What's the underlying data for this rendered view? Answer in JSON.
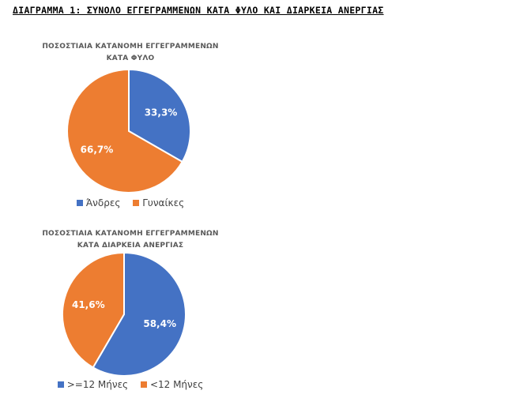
{
  "page": {
    "title": "ΔΙΑΓΡΑΜΜΑ 1: ΣΥΝΟΛΟ ΕΓΓΕΓΡΑΜΜΕΝΩΝ ΚΑΤΑ ΦΥΛΟ ΚΑΙ ΔΙΑΡΚΕΙΑ ΑΝΕΡΓΙΑΣ"
  },
  "colors": {
    "blue": "#4472C4",
    "orange": "#ED7D31"
  },
  "chart_data": [
    {
      "type": "pie",
      "title_lines": [
        "ΠΟΣΟΣΤΙΑΙΑ ΚΑΤΑΝΟΜΗ ΕΓΓΕΓΡΑΜΜΕΝΩΝ",
        "ΚΑΤΑ ΦΥΛΟ"
      ],
      "start_angle_deg": 0,
      "slices": [
        {
          "label": "Άνδρες",
          "value": 33.3,
          "display": "33,3%",
          "color": "#4472C4"
        },
        {
          "label": "Γυναίκες",
          "value": 66.7,
          "display": "66,7%",
          "color": "#ED7D31"
        }
      ],
      "legend_position": "bottom"
    },
    {
      "type": "pie",
      "title_lines": [
        "ΠΟΣΟΣΤΙΑΙΑ ΚΑΤΑΝΟΜΗ ΕΓΓΕΓΡΑΜΜΕΝΩΝ",
        "ΚΑΤΑ ΔΙΑΡΚΕΙΑ ΑΝΕΡΓΙΑΣ"
      ],
      "start_angle_deg": 0,
      "slices": [
        {
          "label": ">=12 Μήνες",
          "value": 58.4,
          "display": "58,4%",
          "color": "#4472C4"
        },
        {
          "label": "<12 Μήνες",
          "value": 41.6,
          "display": "41,6%",
          "color": "#ED7D31"
        }
      ],
      "legend_position": "bottom"
    }
  ]
}
